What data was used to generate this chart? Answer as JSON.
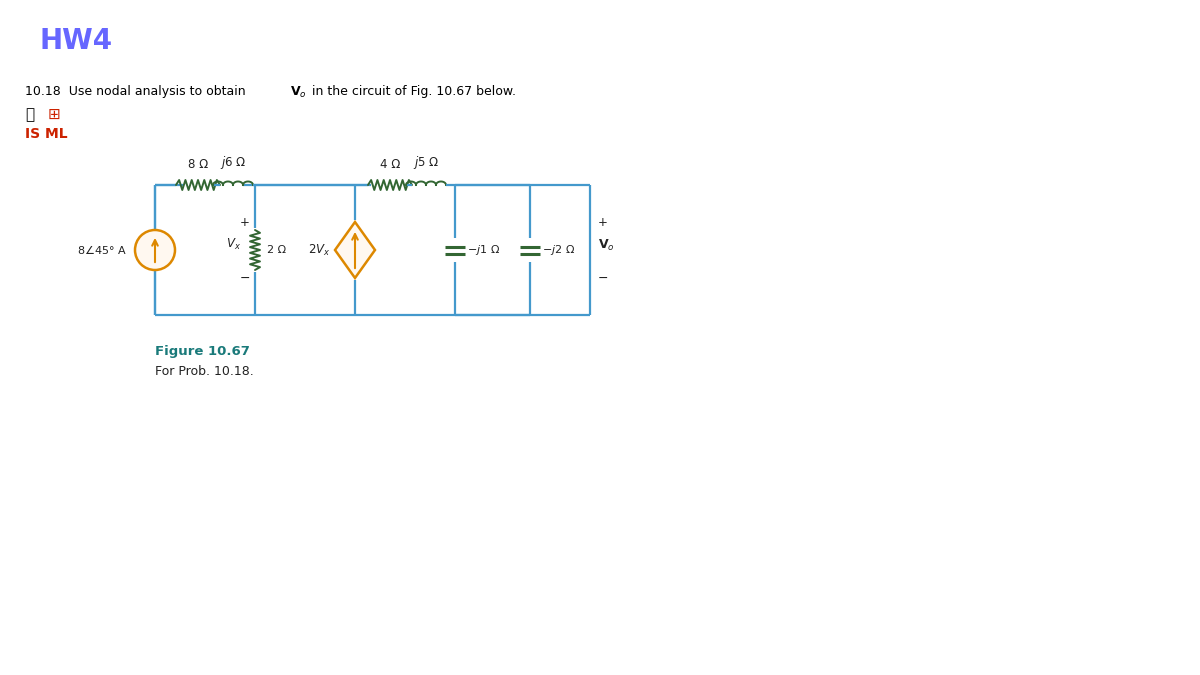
{
  "title": "HW4",
  "title_color": "#6666ff",
  "title_fontsize": 20,
  "figure_label": "Figure 10.67",
  "figure_sublabel": "For Prob. 10.18.",
  "circuit_color": "#4499cc",
  "component_color": "#336633",
  "label_color": "#222222",
  "orange_source": "#dd8800",
  "background": "#ffffff",
  "is_ml_color": "#cc2200",
  "teal_label": "#1a7a7a"
}
